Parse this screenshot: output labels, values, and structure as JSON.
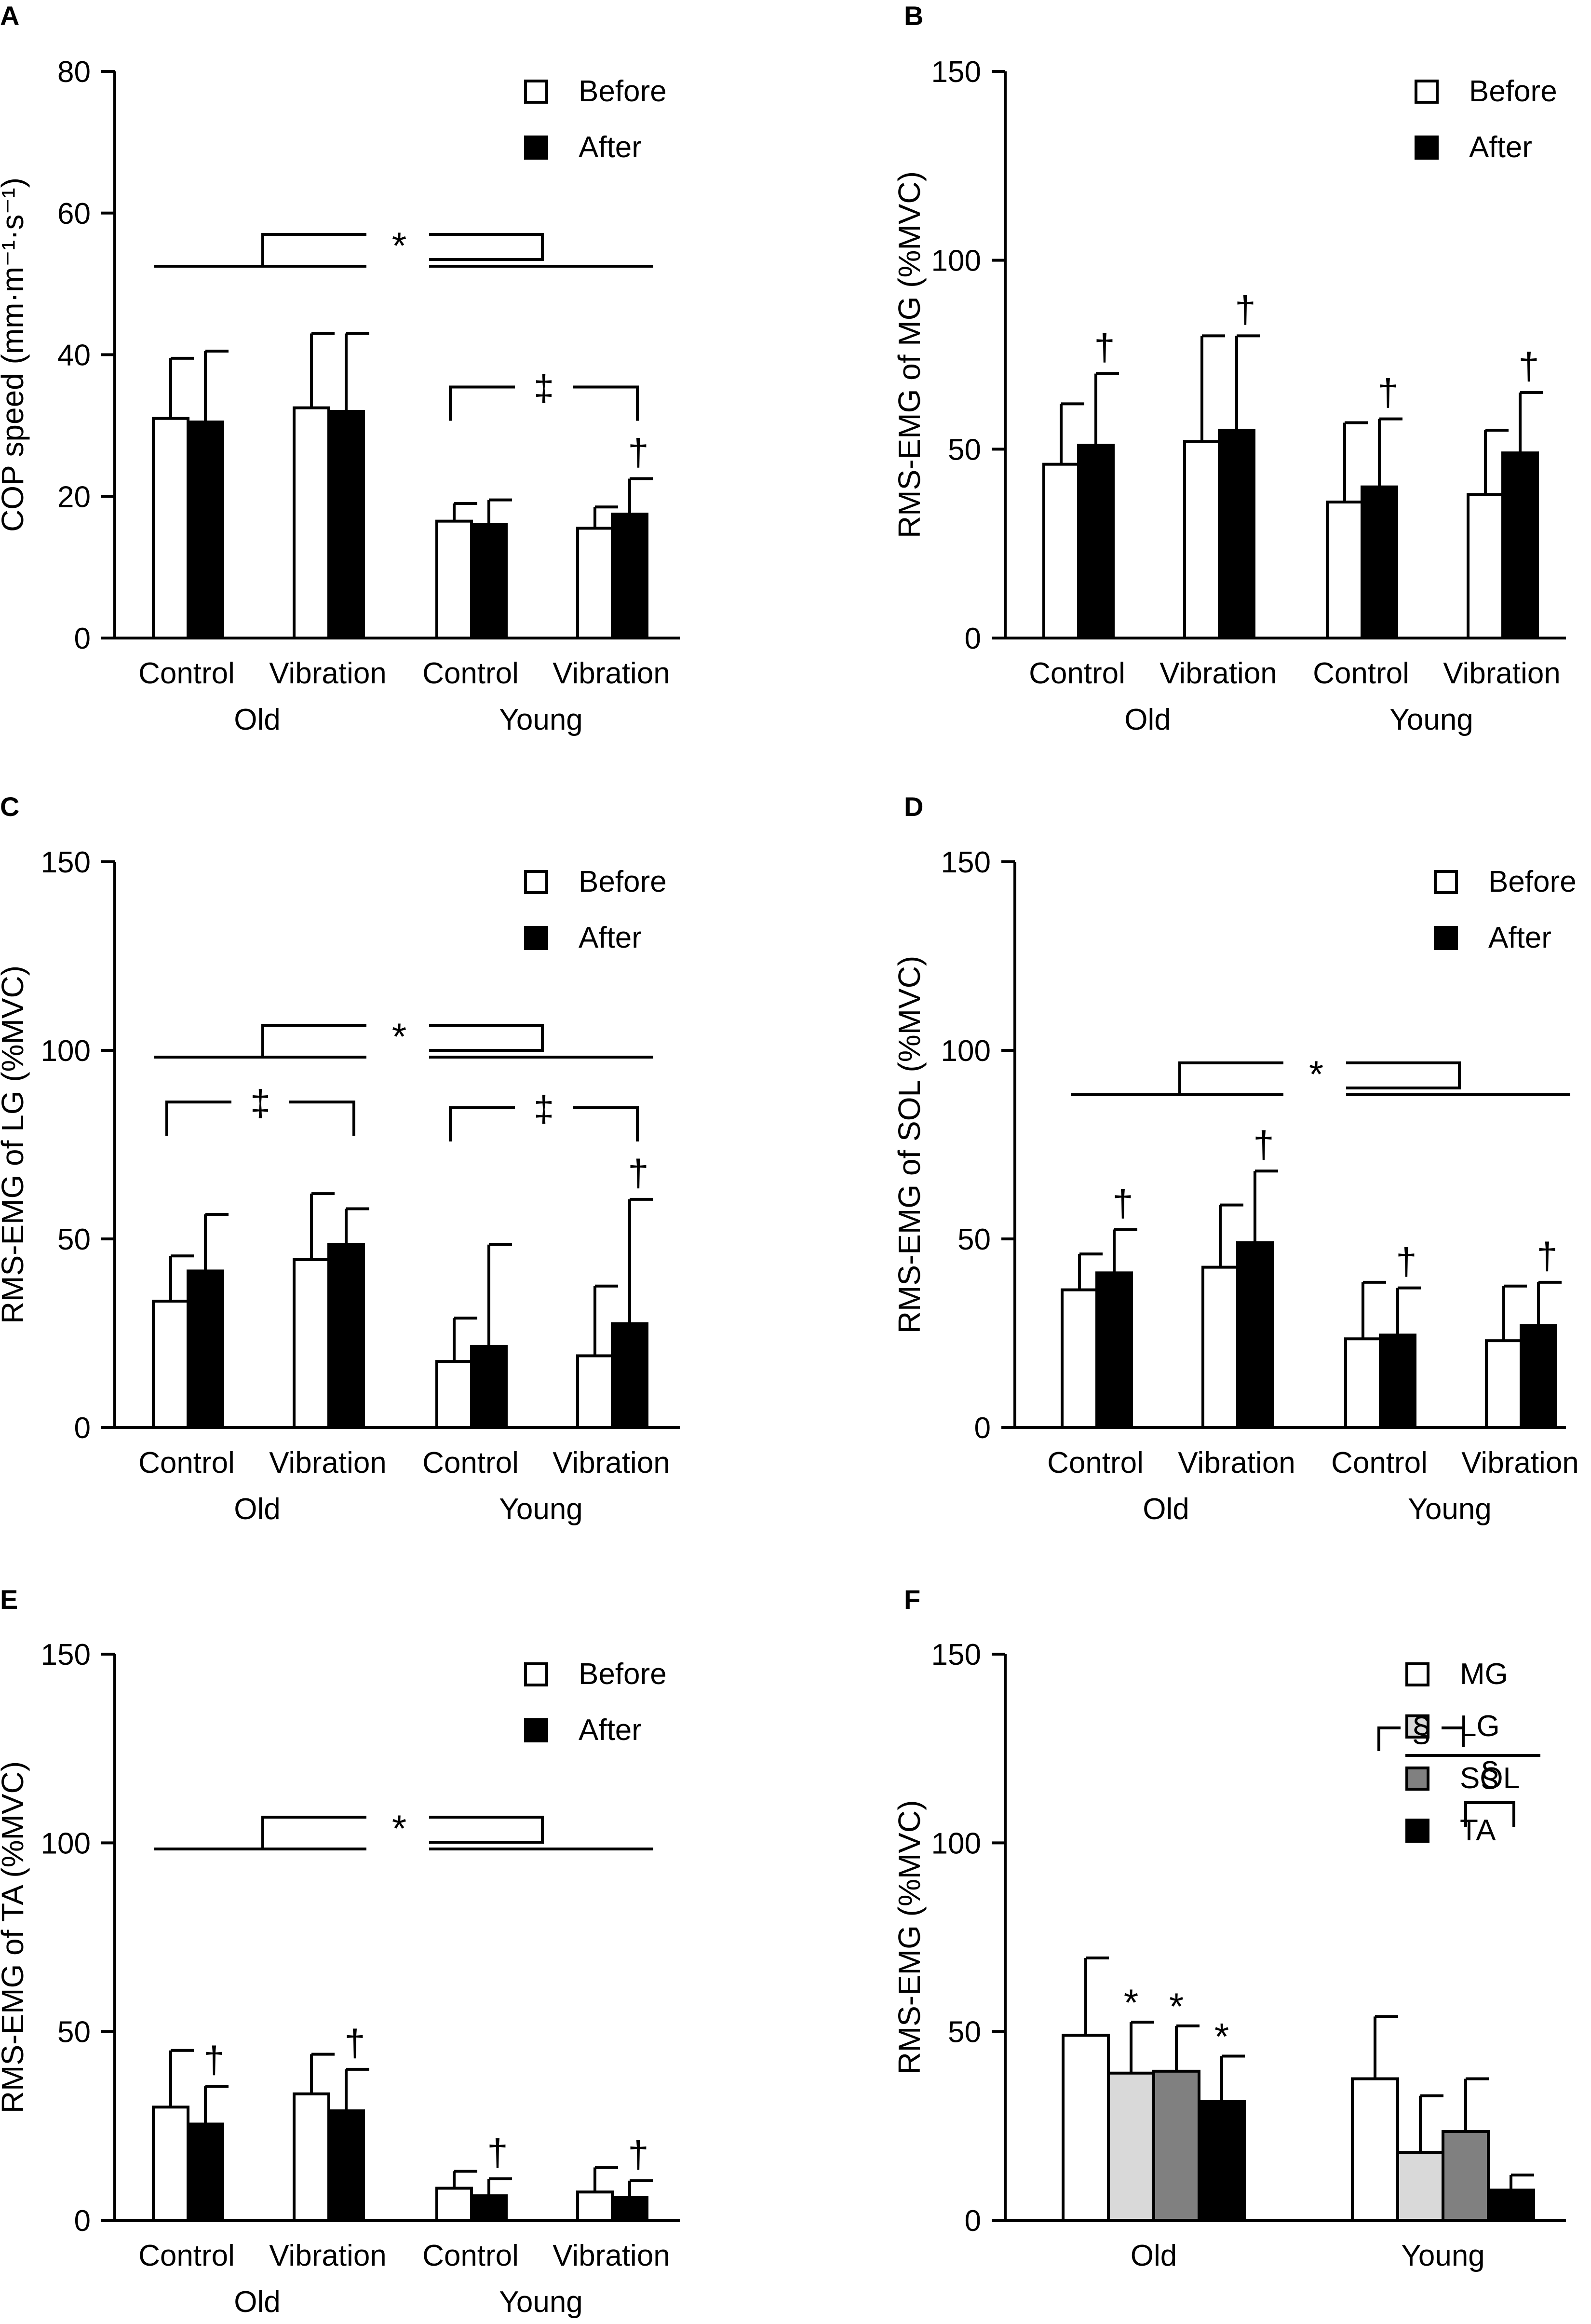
{
  "figure": {
    "x_subgroup_labels": [
      "Control",
      "Vibration",
      "Control",
      "Vibration"
    ],
    "x_group_labels": [
      "Old",
      "Young"
    ]
  },
  "chart_data": [
    {
      "id": "A",
      "panel_label": "A",
      "type": "bar",
      "ylabel": "COP speed (mm·m⁻¹·s⁻¹)",
      "ylim": [
        0,
        80
      ],
      "yticks": [
        0,
        20,
        40,
        60,
        80
      ],
      "categories": [
        "Control",
        "Vibration",
        "Control",
        "Vibration"
      ],
      "groups": [
        "Old",
        "Young"
      ],
      "legend": [
        "Before",
        "After"
      ],
      "series": [
        {
          "name": "Before",
          "values": [
            31,
            32.5,
            16.5,
            15.5
          ],
          "errors": [
            8.5,
            10.5,
            2.5,
            3
          ]
        },
        {
          "name": "After",
          "values": [
            30.5,
            32,
            16,
            17.5
          ],
          "errors": [
            10,
            11,
            3.5,
            5
          ]
        }
      ],
      "annotations": [
        {
          "type": "group-bracket",
          "symbol": "*"
        },
        {
          "type": "bracket",
          "symbol": "‡",
          "from": 2,
          "to": 3
        },
        {
          "type": "dagger",
          "symbol": "†",
          "category": 3
        }
      ]
    },
    {
      "id": "B",
      "panel_label": "B",
      "type": "bar",
      "ylabel": "RMS-EMG of MG (%MVC)",
      "ylim": [
        0,
        150
      ],
      "yticks": [
        0,
        50,
        100,
        150
      ],
      "categories": [
        "Control",
        "Vibration",
        "Control",
        "Vibration"
      ],
      "groups": [
        "Old",
        "Young"
      ],
      "legend": [
        "Before",
        "After"
      ],
      "series": [
        {
          "name": "Before",
          "values": [
            46,
            52,
            36,
            38
          ],
          "errors": [
            16,
            28,
            21,
            17
          ]
        },
        {
          "name": "After",
          "values": [
            51,
            55,
            40,
            49
          ],
          "errors": [
            19,
            25,
            18,
            16
          ]
        }
      ],
      "annotations": [
        {
          "type": "dagger",
          "symbol": "†",
          "category": 0
        },
        {
          "type": "dagger",
          "symbol": "†",
          "category": 1
        },
        {
          "type": "dagger",
          "symbol": "†",
          "category": 2
        },
        {
          "type": "dagger",
          "symbol": "†",
          "category": 3
        }
      ]
    },
    {
      "id": "C",
      "panel_label": "C",
      "type": "bar",
      "ylabel": "RMS-EMG of LG (%MVC)",
      "ylim": [
        0,
        150
      ],
      "yticks": [
        0,
        50,
        100,
        150
      ],
      "categories": [
        "Control",
        "Vibration",
        "Control",
        "Vibration"
      ],
      "groups": [
        "Old",
        "Young"
      ],
      "legend": [
        "Before",
        "After"
      ],
      "series": [
        {
          "name": "Before",
          "values": [
            33.5,
            44.5,
            17.5,
            19
          ],
          "errors": [
            12,
            17.5,
            11.5,
            18.5
          ]
        },
        {
          "name": "After",
          "values": [
            41.5,
            48.5,
            21.5,
            27.5
          ],
          "errors": [
            15,
            9.5,
            27,
            33
          ]
        }
      ],
      "annotations": [
        {
          "type": "group-bracket",
          "symbol": "*"
        },
        {
          "type": "bracket",
          "symbol": "‡",
          "from": 0,
          "to": 1
        },
        {
          "type": "bracket",
          "symbol": "‡",
          "from": 2,
          "to": 3
        },
        {
          "type": "dagger",
          "symbol": "†",
          "category": 3
        }
      ]
    },
    {
      "id": "D",
      "panel_label": "D",
      "type": "bar",
      "ylabel": "RMS-EMG of SOL (%MVC)",
      "ylim": [
        0,
        150
      ],
      "yticks": [
        0,
        50,
        100,
        150
      ],
      "categories": [
        "Control",
        "Vibration",
        "Control",
        "Vibration"
      ],
      "groups": [
        "Old",
        "Young"
      ],
      "legend": [
        "Before",
        "After"
      ],
      "series": [
        {
          "name": "Before",
          "values": [
            36.5,
            42.5,
            23.5,
            23
          ],
          "errors": [
            9.5,
            16.5,
            15,
            14.5
          ]
        },
        {
          "name": "After",
          "values": [
            41,
            49,
            24.5,
            27
          ],
          "errors": [
            11.5,
            19,
            12.5,
            11.5
          ]
        }
      ],
      "annotations": [
        {
          "type": "group-bracket",
          "symbol": "*"
        },
        {
          "type": "dagger",
          "symbol": "†",
          "category": 0
        },
        {
          "type": "dagger",
          "symbol": "†",
          "category": 1
        },
        {
          "type": "dagger",
          "symbol": "†",
          "category": 2
        },
        {
          "type": "dagger",
          "symbol": "†",
          "category": 3
        }
      ]
    },
    {
      "id": "E",
      "panel_label": "E",
      "type": "bar",
      "ylabel": "RMS-EMG of TA (%MVC)",
      "ylim": [
        0,
        150
      ],
      "yticks": [
        0,
        50,
        100,
        150
      ],
      "categories": [
        "Control",
        "Vibration",
        "Control",
        "Vibration"
      ],
      "groups": [
        "Old",
        "Young"
      ],
      "legend": [
        "Before",
        "After"
      ],
      "series": [
        {
          "name": "Before",
          "values": [
            30,
            33.5,
            8.5,
            7.5
          ],
          "errors": [
            15,
            10.5,
            4.5,
            6.5
          ]
        },
        {
          "name": "After",
          "values": [
            25.5,
            29,
            6.5,
            6
          ],
          "errors": [
            10,
            11,
            4.5,
            4.5
          ]
        }
      ],
      "annotations": [
        {
          "type": "group-bracket",
          "symbol": "*"
        },
        {
          "type": "dagger",
          "symbol": "†",
          "category": 0
        },
        {
          "type": "dagger",
          "symbol": "†",
          "category": 1
        },
        {
          "type": "dagger",
          "symbol": "†",
          "category": 2
        },
        {
          "type": "dagger",
          "symbol": "†",
          "category": 3
        }
      ]
    },
    {
      "id": "F",
      "panel_label": "F",
      "type": "bar",
      "ylabel": "RMS-EMG (%MVC)",
      "ylim": [
        0,
        150
      ],
      "yticks": [
        0,
        50,
        100,
        150
      ],
      "categories": [
        "Old",
        "Young"
      ],
      "legend": [
        "MG",
        "LG",
        "SOL",
        "TA"
      ],
      "series": [
        {
          "name": "MG",
          "values": [
            49,
            37.5
          ],
          "errors": [
            20.5,
            16.5
          ]
        },
        {
          "name": "LG",
          "values": [
            39,
            18
          ],
          "errors": [
            13.5,
            15
          ]
        },
        {
          "name": "SOL",
          "values": [
            39.5,
            23.5
          ],
          "errors": [
            12,
            14
          ]
        },
        {
          "name": "TA",
          "values": [
            31.5,
            8
          ],
          "errors": [
            12,
            4
          ]
        }
      ],
      "annotations": [
        {
          "type": "star",
          "symbol": "*",
          "group": 0,
          "bar": 1
        },
        {
          "type": "star",
          "symbol": "*",
          "group": 0,
          "bar": 2
        },
        {
          "type": "star",
          "symbol": "*",
          "group": 0,
          "bar": 3
        },
        {
          "type": "bracket",
          "symbol": "§",
          "group": 1,
          "from": 0,
          "to": 1
        },
        {
          "type": "bracket",
          "symbol": "§",
          "group": 1,
          "from": 2,
          "to": 3
        }
      ]
    }
  ]
}
